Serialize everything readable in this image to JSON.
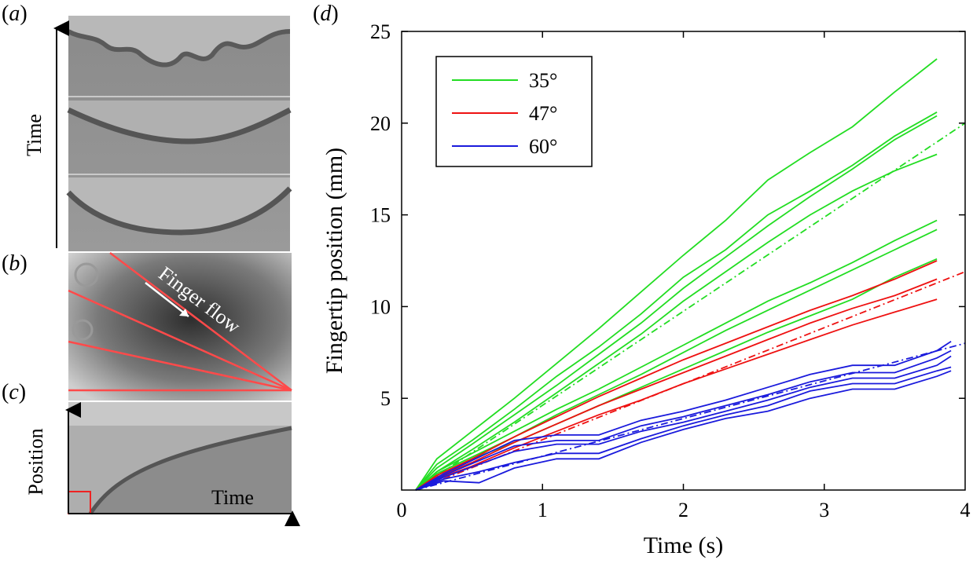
{
  "panels": {
    "a": {
      "letter": "a",
      "axis_label": "Time"
    },
    "b": {
      "letter": "b",
      "annotation": "Finger flow"
    },
    "c": {
      "letter": "c",
      "ylabel": "Position",
      "xlabel": "Time"
    },
    "d": {
      "letter": "d"
    }
  },
  "colors": {
    "green": "#22dd22",
    "red": "#ee1111",
    "blue": "#1a1adc",
    "ray": "#ff4444"
  },
  "chart_data": {
    "type": "line",
    "xlabel": "Time (s)",
    "ylabel": "Fingertip position (mm)",
    "xlim": [
      0,
      4
    ],
    "ylim": [
      0,
      25
    ],
    "xticks": [
      "0",
      "1",
      "2",
      "3",
      "4"
    ],
    "yticks": [
      "5",
      "10",
      "15",
      "20",
      "25"
    ],
    "grid": false,
    "legend_position": "top-left",
    "legend": [
      {
        "label": "35°",
        "color": "#22dd22"
      },
      {
        "label": "47°",
        "color": "#ee1111"
      },
      {
        "label": "60°",
        "color": "#1a1adc"
      }
    ],
    "series": [
      {
        "group": "35°",
        "x": [
          0.1,
          0.25,
          0.5,
          0.8,
          1.1,
          1.4,
          1.7,
          2.0,
          2.3,
          2.6,
          2.9,
          3.2,
          3.5,
          3.8
        ],
        "y": [
          0,
          1.7,
          3.2,
          5.0,
          6.9,
          8.8,
          10.8,
          12.8,
          14.7,
          16.9,
          18.4,
          19.8,
          21.7,
          23.5
        ]
      },
      {
        "group": "35°",
        "x": [
          0.1,
          0.25,
          0.5,
          0.8,
          1.1,
          1.4,
          1.7,
          2.0,
          2.3,
          2.6,
          2.9,
          3.2,
          3.5,
          3.8
        ],
        "y": [
          0,
          1.4,
          2.7,
          4.4,
          6.2,
          7.8,
          9.6,
          11.6,
          13.1,
          15.0,
          16.3,
          17.7,
          19.3,
          20.6
        ]
      },
      {
        "group": "35°",
        "x": [
          0.1,
          0.25,
          0.5,
          0.8,
          1.1,
          1.4,
          1.7,
          2.0,
          2.3,
          2.6,
          2.9,
          3.2,
          3.5,
          3.8
        ],
        "y": [
          0,
          1.2,
          2.5,
          4.1,
          5.7,
          7.4,
          9.1,
          11.0,
          12.7,
          14.4,
          16.0,
          17.5,
          19.1,
          20.4
        ]
      },
      {
        "group": "35°",
        "x": [
          0.1,
          0.25,
          0.5,
          0.8,
          1.1,
          1.4,
          1.7,
          2.0,
          2.3,
          2.6,
          2.9,
          3.2,
          3.5,
          3.8
        ],
        "y": [
          0,
          1.0,
          2.2,
          3.7,
          5.3,
          6.9,
          8.5,
          10.3,
          11.9,
          13.5,
          15.0,
          16.3,
          17.4,
          18.3
        ]
      },
      {
        "group": "35°",
        "x": [
          0.1,
          0.25,
          0.5,
          0.8,
          1.1,
          1.4,
          1.7,
          2.0,
          2.3,
          2.6,
          2.9,
          3.2,
          3.5,
          3.8
        ],
        "y": [
          0,
          1.0,
          2.0,
          3.2,
          4.4,
          5.5,
          6.7,
          7.9,
          9.1,
          10.3,
          11.3,
          12.4,
          13.6,
          14.7
        ]
      },
      {
        "group": "35°",
        "x": [
          0.1,
          0.25,
          0.5,
          0.8,
          1.1,
          1.4,
          1.7,
          2.0,
          2.3,
          2.6,
          2.9,
          3.2,
          3.5,
          3.8
        ],
        "y": [
          0,
          0.9,
          1.8,
          2.9,
          4.1,
          5.2,
          6.3,
          7.5,
          8.7,
          9.8,
          10.9,
          12.0,
          13.1,
          14.2
        ]
      },
      {
        "group": "35°",
        "x": [
          0.1,
          0.25,
          0.5,
          0.8,
          1.1,
          1.4,
          1.7,
          2.0,
          2.3,
          2.6,
          2.9,
          3.2,
          3.5,
          3.8
        ],
        "y": [
          0,
          0.8,
          1.7,
          2.6,
          3.6,
          4.6,
          5.6,
          6.6,
          7.6,
          8.6,
          9.5,
          10.4,
          11.6,
          12.6
        ]
      },
      {
        "group": "35°",
        "dashed": true,
        "x": [
          0.1,
          4.0
        ],
        "y": [
          0,
          20.0
        ]
      },
      {
        "group": "47°",
        "x": [
          0.1,
          0.25,
          0.5,
          0.8,
          1.1,
          1.4,
          1.7,
          2.0,
          2.3,
          2.6,
          2.9,
          3.2,
          3.5,
          3.8
        ],
        "y": [
          0,
          0.8,
          1.7,
          2.9,
          4.0,
          5.1,
          6.1,
          7.1,
          8.0,
          8.9,
          9.8,
          10.6,
          11.5,
          12.5
        ]
      },
      {
        "group": "47°",
        "x": [
          0.1,
          0.25,
          0.5,
          0.8,
          1.1,
          1.4,
          1.7,
          2.0,
          2.3,
          2.6,
          2.9,
          3.2,
          3.5,
          3.8
        ],
        "y": [
          0,
          0.7,
          1.5,
          2.6,
          3.6,
          4.6,
          5.5,
          6.4,
          7.3,
          8.2,
          9.1,
          9.9,
          10.6,
          11.5
        ]
      },
      {
        "group": "47°",
        "x": [
          0.1,
          0.25,
          0.5,
          0.8,
          1.1,
          1.4,
          1.7,
          2.0,
          2.3,
          2.6,
          2.9,
          3.2,
          3.5,
          3.8
        ],
        "y": [
          0,
          0.6,
          1.3,
          2.3,
          3.2,
          4.1,
          4.9,
          5.8,
          6.6,
          7.4,
          8.2,
          9.0,
          9.7,
          10.4
        ]
      },
      {
        "group": "47°",
        "dashed": true,
        "x": [
          0.1,
          4.0
        ],
        "y": [
          0,
          11.9
        ]
      },
      {
        "group": "60°",
        "x": [
          0.1,
          0.3,
          0.55,
          0.8,
          1.1,
          1.4,
          1.7,
          2.0,
          2.3,
          2.6,
          2.9,
          3.2,
          3.5,
          3.8,
          3.9
        ],
        "y": [
          0,
          0.9,
          1.8,
          2.7,
          3.0,
          3.0,
          3.8,
          4.3,
          4.9,
          5.6,
          6.3,
          6.8,
          6.8,
          7.6,
          8.1
        ]
      },
      {
        "group": "60°",
        "x": [
          0.1,
          0.3,
          0.55,
          0.8,
          1.1,
          1.4,
          1.7,
          2.0,
          2.3,
          2.6,
          2.9,
          3.2,
          3.5,
          3.8,
          3.9
        ],
        "y": [
          0,
          0.8,
          1.6,
          2.4,
          2.7,
          2.7,
          3.5,
          4.0,
          4.6,
          5.2,
          5.9,
          6.4,
          6.4,
          7.2,
          7.6
        ]
      },
      {
        "group": "60°",
        "x": [
          0.1,
          0.3,
          0.55,
          0.8,
          1.1,
          1.4,
          1.7,
          2.0,
          2.3,
          2.6,
          2.9,
          3.2,
          3.5,
          3.8,
          3.9
        ],
        "y": [
          0,
          0.7,
          1.4,
          2.1,
          2.5,
          2.5,
          3.2,
          3.7,
          4.3,
          4.9,
          5.6,
          6.1,
          6.1,
          6.8,
          7.3
        ]
      },
      {
        "group": "60°",
        "x": [
          0.1,
          0.3,
          0.55,
          0.8,
          1.1,
          1.4,
          1.7,
          2.0,
          2.3,
          2.6,
          2.9,
          3.2,
          3.5,
          3.8,
          3.9
        ],
        "y": [
          0,
          0.6,
          1.0,
          1.5,
          2.0,
          2.0,
          2.8,
          3.5,
          4.1,
          4.6,
          5.4,
          5.8,
          5.8,
          6.5,
          6.7
        ]
      },
      {
        "group": "60°",
        "x": [
          0.1,
          0.3,
          0.55,
          0.8,
          1.1,
          1.4,
          1.7,
          2.0,
          2.3,
          2.6,
          2.9,
          3.2,
          3.5,
          3.8,
          3.9
        ],
        "y": [
          0,
          0.5,
          0.4,
          1.2,
          1.7,
          1.7,
          2.6,
          3.3,
          3.9,
          4.3,
          5.0,
          5.5,
          5.5,
          6.2,
          6.5
        ]
      },
      {
        "group": "60°",
        "dashed": true,
        "x": [
          0.1,
          4.0
        ],
        "y": [
          0,
          8.0
        ]
      }
    ]
  }
}
